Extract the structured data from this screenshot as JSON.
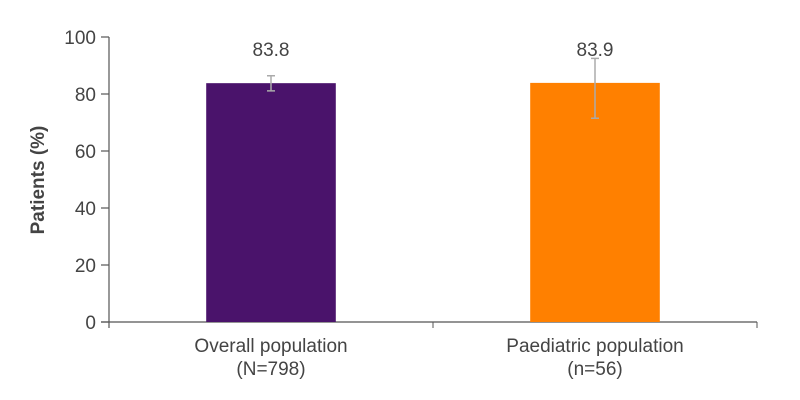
{
  "chart_data": {
    "type": "bar",
    "title": "",
    "xlabel": "",
    "ylabel": "Patients  (%)",
    "ylim": [
      0,
      100
    ],
    "yticks": [
      0,
      20,
      40,
      60,
      80,
      100
    ],
    "ytick_labels": [
      "0",
      "20",
      "40",
      "60",
      "80",
      "100"
    ],
    "grid": false,
    "legend": null,
    "categories": [
      {
        "line1": "Overall population",
        "line2": "(N=798)"
      },
      {
        "line1": "Paediatric population",
        "line2": "(n=56)"
      }
    ],
    "values": [
      83.8,
      83.9
    ],
    "data_labels": [
      "83.8",
      "83.9"
    ],
    "error_bars": [
      {
        "low": 81.1,
        "high": 86.4
      },
      {
        "low": 71.5,
        "high": 92.5
      }
    ],
    "colors": [
      "#4a136b",
      "#ff8000"
    ],
    "error_bar_color": "#aaaaaa",
    "axis_color": "#555555"
  }
}
